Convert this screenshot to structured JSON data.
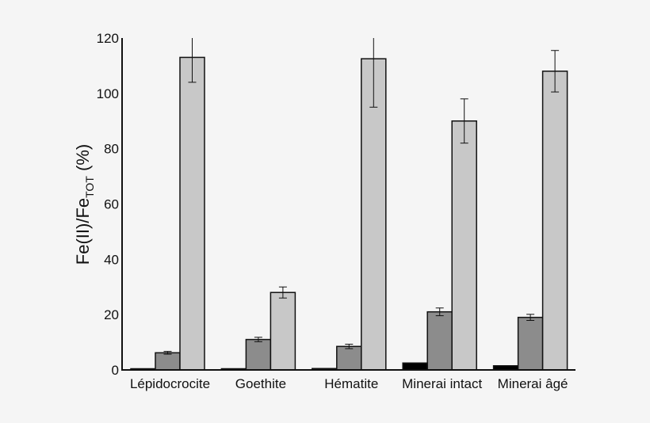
{
  "chart_data": {
    "type": "bar",
    "title": "",
    "xlabel": "",
    "ylabel": {
      "main": "Fe(II)/Fe",
      "subscript": "TOT",
      "suffix": " (%)"
    },
    "ylim": [
      0,
      120
    ],
    "yticks": [
      0,
      20,
      40,
      60,
      80,
      100,
      120
    ],
    "grid": false,
    "categories": [
      "Lépidocrocite",
      "Goethite",
      "Hématite",
      "Minerai intact",
      "Minerai âgé"
    ],
    "series": [
      {
        "color": "#000000",
        "values": [
          0,
          0,
          0.5,
          2.5,
          1.5
        ],
        "errors": [
          0,
          0,
          0,
          0,
          0
        ]
      },
      {
        "color": "#8c8c8c",
        "values": [
          6.2,
          11,
          8.5,
          21,
          19
        ],
        "errors": [
          0.5,
          0.8,
          0.8,
          1.4,
          1.1
        ]
      },
      {
        "color": "#c8c8c8",
        "values": [
          113,
          28,
          112.5,
          90,
          108
        ],
        "errors": [
          9,
          2,
          17.5,
          8,
          7.5
        ]
      }
    ]
  }
}
